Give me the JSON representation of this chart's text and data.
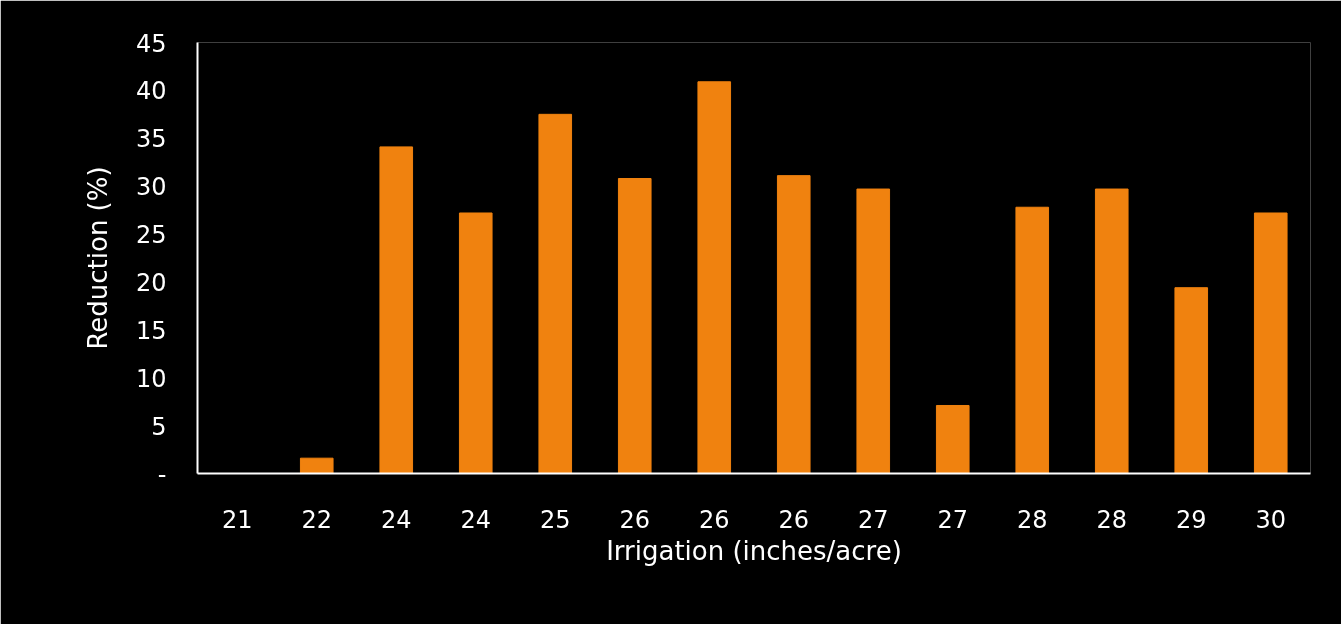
{
  "chart_data": {
    "type": "bar",
    "xlabel": "Irrigation (inches/acre)",
    "ylabel": "Reduction (%)",
    "categories": [
      "21",
      "22",
      "24",
      "24",
      "25",
      "26",
      "26",
      "26",
      "27",
      "27",
      "28",
      "28",
      "29",
      "30"
    ],
    "values": [
      0,
      1.6,
      34.1,
      27.2,
      37.5,
      30.8,
      40.9,
      31.1,
      29.7,
      7.1,
      27.8,
      29.7,
      19.4,
      27.2
    ],
    "color": "#f0820f",
    "ylim": [
      0,
      45
    ],
    "yticks": [
      {
        "value": 0,
        "label": "-"
      },
      5,
      10,
      15,
      20,
      25,
      30,
      35,
      40,
      45
    ],
    "grid": false
  }
}
